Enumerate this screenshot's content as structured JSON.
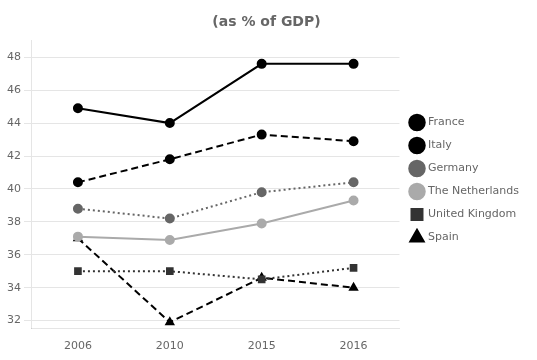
{
  "chart_data": {
    "type": "line",
    "title": "(as % of GDP)",
    "categories": [
      "2006",
      "2010",
      "2015",
      "2016"
    ],
    "series": [
      {
        "name": "France",
        "color": "#000000",
        "line_style": "solid",
        "marker": "circle",
        "values": [
          44.9,
          44.0,
          47.6,
          47.6
        ]
      },
      {
        "name": "Italy",
        "color": "#000000",
        "line_style": "dashed",
        "marker": "circle",
        "values": [
          40.4,
          41.8,
          43.3,
          42.9
        ]
      },
      {
        "name": "Germany",
        "color": "#666666",
        "line_style": "dotted",
        "marker": "circle",
        "values": [
          38.8,
          38.2,
          39.8,
          40.4
        ]
      },
      {
        "name": "The Netherlands",
        "color": "#aaaaaa",
        "line_style": "solid",
        "marker": "circle",
        "values": [
          37.1,
          36.9,
          37.9,
          39.3
        ]
      },
      {
        "name": "United Kingdom",
        "color": "#333333",
        "line_style": "dotted",
        "marker": "square",
        "values": [
          35.0,
          35.0,
          34.5,
          35.2
        ]
      },
      {
        "name": "Spain",
        "color": "#000000",
        "line_style": "dashed",
        "marker": "triangle",
        "values": [
          37.0,
          31.9,
          34.6,
          34.0
        ]
      }
    ],
    "ylim": [
      31.5,
      49.0
    ],
    "yticks": [
      32,
      34,
      36,
      38,
      40,
      42,
      44,
      46,
      48
    ],
    "grid": true,
    "legend": "right"
  }
}
